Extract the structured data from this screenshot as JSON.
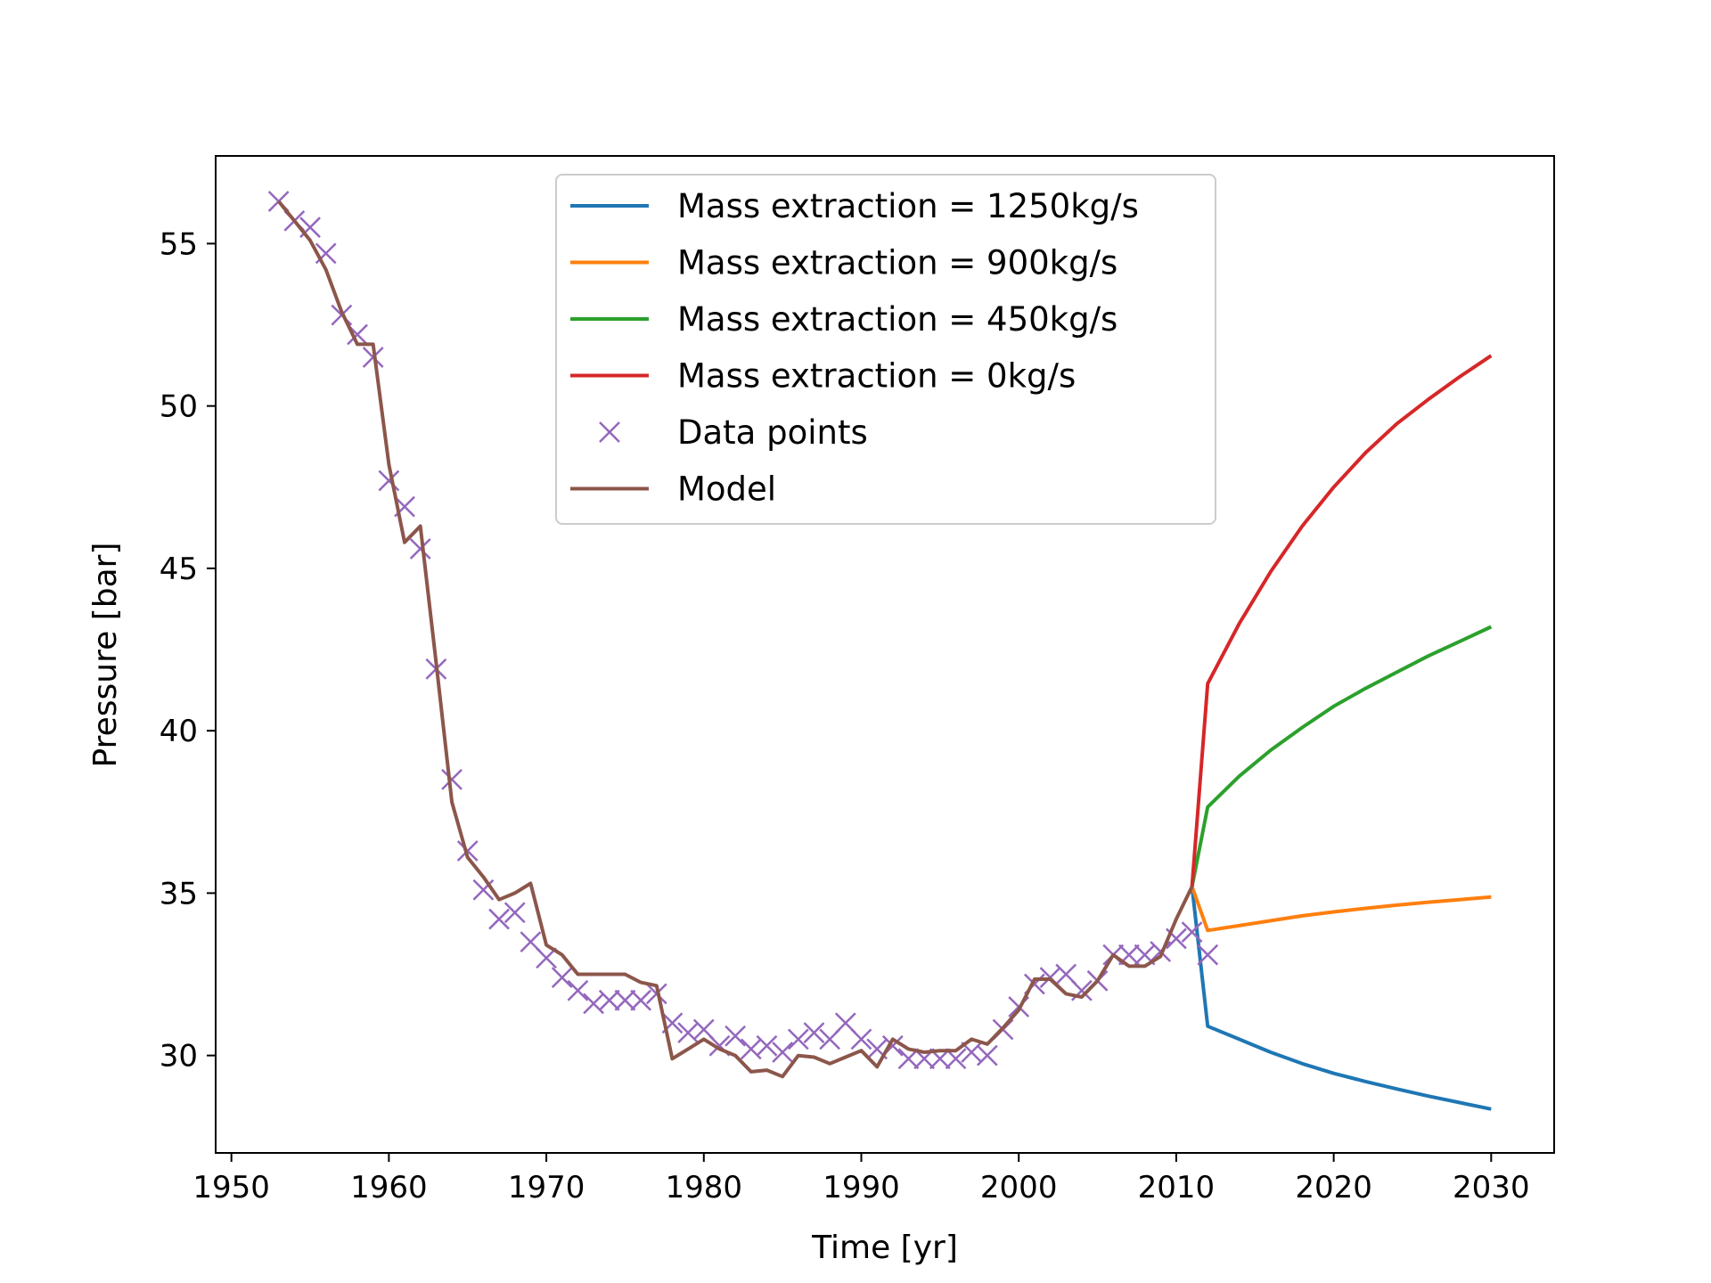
{
  "chart_data": {
    "type": "line",
    "title": "",
    "xlabel": "Time [yr]",
    "ylabel": "Pressure [bar]",
    "xlim": [
      1949,
      2034
    ],
    "ylim": [
      27,
      57.7
    ],
    "x_ticks": [
      1950,
      1960,
      1970,
      1980,
      1990,
      2000,
      2010,
      2020,
      2030
    ],
    "y_ticks": [
      30,
      35,
      40,
      45,
      50,
      55
    ],
    "grid": false,
    "legend_position": "upper-center",
    "colors": {
      "blue": "#1f77b4",
      "orange": "#ff7f0e",
      "green": "#2ca02c",
      "red": "#d62728",
      "purple": "#9467bd",
      "brown": "#8c564b"
    },
    "series": [
      {
        "name": "Mass extraction = 1250kg/s",
        "kind": "line",
        "color": "#1f77b4",
        "x": [
          2011,
          2012,
          2014,
          2016,
          2018,
          2020,
          2022,
          2024,
          2026,
          2028,
          2030
        ],
        "y": [
          35.2,
          30.9,
          30.5,
          30.1,
          29.75,
          29.45,
          29.2,
          28.97,
          28.75,
          28.55,
          28.35
        ]
      },
      {
        "name": "Mass extraction = 900kg/s",
        "kind": "line",
        "color": "#ff7f0e",
        "x": [
          2011,
          2012,
          2014,
          2016,
          2018,
          2020,
          2022,
          2024,
          2026,
          2028,
          2030
        ],
        "y": [
          35.2,
          33.85,
          34.0,
          34.15,
          34.3,
          34.42,
          34.53,
          34.63,
          34.72,
          34.8,
          34.88
        ]
      },
      {
        "name": "Mass extraction = 450kg/s",
        "kind": "line",
        "color": "#2ca02c",
        "x": [
          2011,
          2012,
          2014,
          2016,
          2018,
          2020,
          2022,
          2024,
          2026,
          2028,
          2030
        ],
        "y": [
          35.2,
          37.65,
          38.6,
          39.4,
          40.1,
          40.75,
          41.3,
          41.8,
          42.3,
          42.75,
          43.2
        ]
      },
      {
        "name": "Mass extraction = 0kg/s",
        "kind": "line",
        "color": "#d62728",
        "x": [
          2011,
          2012,
          2014,
          2016,
          2018,
          2020,
          2022,
          2024,
          2026,
          2028,
          2030
        ],
        "y": [
          35.2,
          41.45,
          43.3,
          44.9,
          46.3,
          47.5,
          48.55,
          49.45,
          50.2,
          50.9,
          51.55
        ]
      },
      {
        "name": "Data points",
        "kind": "marker",
        "color": "#9467bd",
        "x": [
          1953,
          1954,
          1955,
          1956,
          1957,
          1958,
          1959,
          1960,
          1961,
          1962,
          1963,
          1964,
          1965,
          1966,
          1967,
          1968,
          1969,
          1970,
          1971,
          1972,
          1973,
          1974,
          1975,
          1976,
          1977,
          1978,
          1979,
          1980,
          1981,
          1982,
          1983,
          1984,
          1985,
          1986,
          1987,
          1988,
          1989,
          1990,
          1991,
          1992,
          1993,
          1994,
          1995,
          1996,
          1997,
          1998,
          1999,
          2000,
          2001,
          2002,
          2003,
          2004,
          2005,
          2006,
          2007,
          2008,
          2009,
          2010,
          2011,
          2012
        ],
        "y": [
          56.3,
          55.7,
          55.5,
          54.7,
          52.8,
          52.2,
          51.5,
          47.7,
          46.9,
          45.6,
          41.9,
          38.5,
          36.3,
          35.1,
          34.2,
          34.4,
          33.5,
          33.0,
          32.4,
          32.0,
          31.6,
          31.7,
          31.7,
          31.7,
          31.9,
          31.0,
          30.7,
          30.8,
          30.3,
          30.6,
          30.2,
          30.3,
          30.1,
          30.5,
          30.7,
          30.5,
          31.0,
          30.5,
          30.2,
          30.3,
          29.9,
          29.9,
          29.9,
          29.9,
          30.1,
          30.0,
          30.8,
          31.5,
          32.2,
          32.4,
          32.5,
          32.0,
          32.3,
          33.1,
          33.1,
          33.1,
          33.2,
          33.6,
          33.8,
          33.1
        ]
      },
      {
        "name": "Model",
        "kind": "line",
        "color": "#8c564b",
        "x": [
          1953,
          1954,
          1955,
          1956,
          1957,
          1958,
          1959,
          1960,
          1961,
          1962,
          1963,
          1964,
          1965,
          1966,
          1967,
          1968,
          1969,
          1970,
          1971,
          1972,
          1973,
          1974,
          1975,
          1976,
          1977,
          1978,
          1979,
          1980,
          1981,
          1982,
          1983,
          1984,
          1985,
          1986,
          1987,
          1988,
          1989,
          1990,
          1991,
          1992,
          1993,
          1994,
          1995,
          1996,
          1997,
          1998,
          1999,
          2000,
          2001,
          2002,
          2003,
          2004,
          2005,
          2006,
          2007,
          2008,
          2009,
          2010,
          2011
        ],
        "y": [
          56.3,
          55.7,
          55.1,
          54.2,
          52.9,
          51.9,
          51.9,
          48.2,
          45.8,
          46.3,
          42.1,
          37.8,
          36.1,
          35.5,
          34.8,
          35.0,
          35.3,
          33.4,
          33.1,
          32.5,
          32.5,
          32.5,
          32.5,
          32.25,
          32.15,
          29.9,
          30.2,
          30.5,
          30.2,
          30.0,
          29.5,
          29.55,
          29.35,
          30.0,
          29.95,
          29.75,
          29.95,
          30.15,
          29.65,
          30.5,
          30.2,
          30.1,
          30.15,
          30.15,
          30.5,
          30.35,
          30.85,
          31.4,
          32.35,
          32.35,
          31.9,
          31.8,
          32.3,
          33.1,
          32.75,
          32.75,
          33.05,
          34.2,
          35.2
        ]
      }
    ]
  }
}
